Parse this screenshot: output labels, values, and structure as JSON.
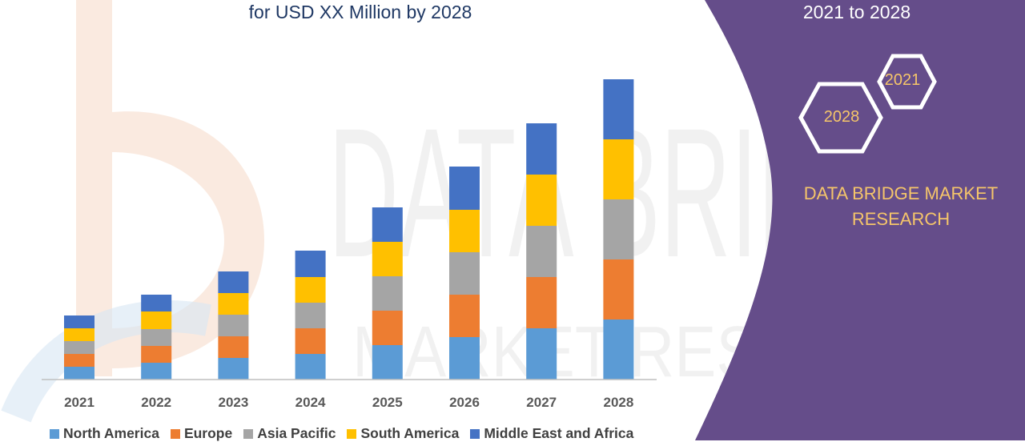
{
  "chart_data": {
    "type": "bar",
    "stacked": true,
    "title": "for USD XX Million by 2028",
    "categories": [
      "2021",
      "2022",
      "2023",
      "2024",
      "2025",
      "2026",
      "2027",
      "2028"
    ],
    "series": [
      {
        "name": "North America",
        "color": "#5b9bd5",
        "values": [
          16,
          21,
          27,
          32,
          43,
          53,
          64,
          75
        ]
      },
      {
        "name": "Europe",
        "color": "#ed7d31",
        "values": [
          16,
          21,
          27,
          32,
          43,
          53,
          64,
          75
        ]
      },
      {
        "name": "Asia Pacific",
        "color": "#a5a5a5",
        "values": [
          16,
          21,
          27,
          32,
          43,
          53,
          64,
          75
        ]
      },
      {
        "name": "South America",
        "color": "#ffc000",
        "values": [
          16,
          22,
          27,
          32,
          43,
          53,
          64,
          75
        ]
      },
      {
        "name": "Middle East and Africa",
        "color": "#4472c4",
        "values": [
          16,
          21,
          27,
          33,
          43,
          54,
          64,
          75
        ]
      }
    ],
    "ylim": [
      0,
      380
    ],
    "grid": false,
    "legend_position": "bottom"
  },
  "panel": {
    "period": "2021 to 2028",
    "hex_start": "2021",
    "hex_end": "2028",
    "brand": "DATA BRIDGE MARKET RESEARCH",
    "background_color": "#654d8a",
    "accent_color": "#f5c56a"
  },
  "watermark": {
    "text": "DATA BRIDGE",
    "subtext": "MARKET RESEARCH"
  }
}
